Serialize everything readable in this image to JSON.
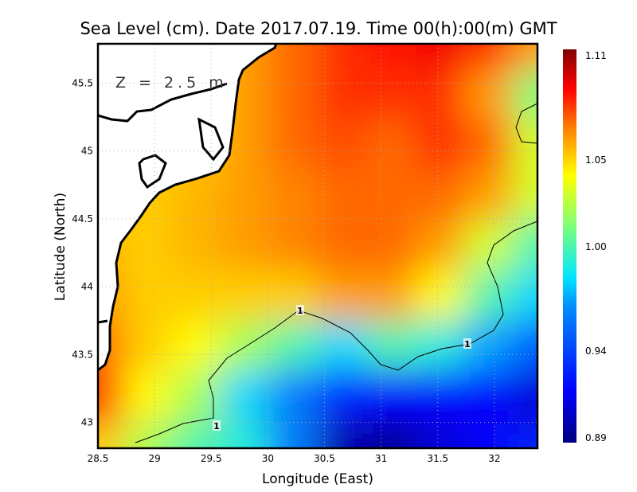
{
  "chart_data": {
    "type": "heatmap",
    "title": "Sea Level (cm). Date 2017.07.19. Time 00(h):00(m) GMT",
    "annotation": "Z = 2.5 m",
    "xlabel": "Longitude (East)",
    "ylabel": "Latitude (North)",
    "xlim": [
      28.5,
      32.38
    ],
    "ylim": [
      42.81,
      45.79
    ],
    "xticks": [
      "28.5",
      "29",
      "29.5",
      "30",
      "30.5",
      "31",
      "31.5",
      "32"
    ],
    "xtick_values": [
      28.5,
      29,
      29.5,
      30,
      30.5,
      31,
      31.5,
      32
    ],
    "yticks": [
      "45.5",
      "45",
      "44.5",
      "44",
      "43.5",
      "43"
    ],
    "ytick_values": [
      45.5,
      45,
      44.5,
      44,
      43.5,
      43
    ],
    "grid": true,
    "colorbar": {
      "range": [
        0.89,
        1.11
      ],
      "ticks": [
        "1.11",
        "1.05",
        "1.00",
        "0.94",
        "0.89"
      ],
      "tick_values": [
        1.11,
        1.05,
        1.0,
        0.94,
        0.89
      ]
    },
    "contour": {
      "level": 1,
      "labels": [
        "1",
        "1",
        "1"
      ]
    },
    "grid_lon": [
      28.5,
      28.93,
      29.36,
      29.79,
      30.22,
      30.66,
      31.09,
      31.52,
      31.95,
      32.38
    ],
    "grid_lat": [
      45.79,
      45.42,
      45.05,
      44.68,
      44.31,
      43.94,
      43.57,
      43.2,
      42.81
    ],
    "values": [
      [
        1.05,
        1.05,
        1.05,
        1.06,
        1.07,
        1.08,
        1.085,
        1.09,
        1.08,
        1.06
      ],
      [
        1.05,
        1.05,
        1.05,
        1.06,
        1.07,
        1.08,
        1.08,
        1.08,
        1.06,
        1.01
      ],
      [
        1.05,
        1.05,
        1.05,
        1.06,
        1.07,
        1.075,
        1.07,
        1.08,
        1.07,
        1.03
      ],
      [
        1.05,
        1.05,
        1.055,
        1.06,
        1.065,
        1.07,
        1.07,
        1.07,
        1.06,
        1.03
      ],
      [
        1.055,
        1.05,
        1.055,
        1.06,
        1.065,
        1.07,
        1.07,
        1.06,
        1.03,
        1.0
      ],
      [
        1.06,
        1.05,
        1.05,
        1.05,
        1.05,
        1.06,
        1.06,
        1.04,
        1.0,
        0.98
      ],
      [
        1.07,
        1.05,
        1.04,
        1.02,
        1.0,
        0.98,
        1.0,
        0.99,
        0.97,
        0.95
      ],
      [
        1.08,
        1.04,
        1.02,
        0.98,
        0.96,
        0.93,
        0.92,
        0.92,
        0.92,
        0.91
      ],
      [
        1.05,
        1.02,
        1.0,
        0.99,
        0.96,
        0.9,
        0.895,
        0.91,
        0.92,
        0.93
      ]
    ]
  }
}
